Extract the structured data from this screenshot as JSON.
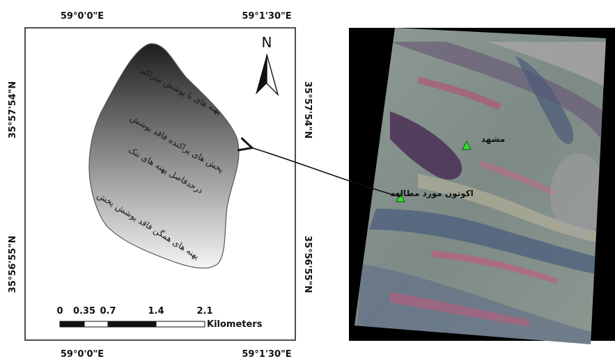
{
  "study_map": {
    "coords_top": [
      "59°0'0\"E",
      "59°1'30\"E"
    ],
    "coords_bottom": [
      "59°0'0\"E",
      "59°1'30\"E"
    ],
    "coords_left": [
      "35°57'54\"N",
      "35°56'55\"N"
    ],
    "coords_right": [
      "35°57'54\"N",
      "35°56'55\"N"
    ],
    "north_label": "N",
    "zones": [
      "پهنه های با پوشش متراکم",
      "پخش های پراکنده فاقد پوشش",
      "درحدفاصل پهنه های تنک",
      "پخش",
      "پهنه های همگن فاقد پوشش"
    ],
    "scale": {
      "ticks": [
        "0",
        "0.35",
        "0.7",
        "1.4",
        "2.1"
      ],
      "unit": "Kilometers"
    }
  },
  "satellite": {
    "labels": {
      "city": "مشهد",
      "study_site": "اکوتون مورد مطالعه"
    },
    "marker_color": "#33dd33"
  }
}
